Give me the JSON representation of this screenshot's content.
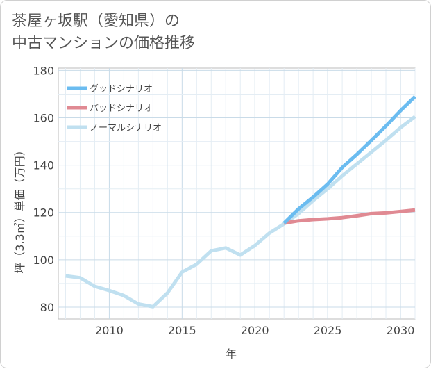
{
  "title_line1": "茶屋ヶ坂駅（愛知県）の",
  "title_line2": "中古マンションの価格推移",
  "chart_data": {
    "type": "line",
    "xlabel": "年",
    "ylabel": "坪（3.3㎡）単価（万円）",
    "xlim": [
      2006.5,
      2031
    ],
    "ylim": [
      75,
      181
    ],
    "xticks": [
      2010,
      2015,
      2020,
      2025,
      2030
    ],
    "yticks": [
      80,
      100,
      120,
      140,
      160,
      180
    ],
    "grid": true,
    "legend_position": "top-left",
    "series": [
      {
        "name": "グッドシナリオ",
        "color": "#6bbcf0",
        "x": [
          2022,
          2023,
          2024,
          2025,
          2026,
          2027,
          2028,
          2029,
          2030,
          2031
        ],
        "y": [
          115.5,
          121.5,
          126.5,
          132.0,
          139.0,
          144.5,
          150.5,
          156.5,
          163.0,
          169.0
        ]
      },
      {
        "name": "バッドシナリオ",
        "color": "#e08a93",
        "x": [
          2022,
          2023,
          2024,
          2025,
          2026,
          2027,
          2028,
          2029,
          2030,
          2031
        ],
        "y": [
          115.5,
          116.5,
          117.0,
          117.3,
          117.8,
          118.6,
          119.5,
          119.8,
          120.4,
          121.0
        ]
      },
      {
        "name": "ノーマルシナリオ",
        "color": "#c0e0f0",
        "x": [
          2007,
          2008,
          2009,
          2010,
          2011,
          2012,
          2013,
          2014,
          2015,
          2016,
          2017,
          2018,
          2019,
          2020,
          2021,
          2022,
          2023,
          2024,
          2025,
          2026,
          2027,
          2028,
          2029,
          2030,
          2031
        ],
        "y": [
          93.2,
          92.4,
          88.8,
          87.0,
          84.9,
          81.3,
          80.2,
          86.0,
          94.8,
          98.1,
          103.8,
          105.0,
          102.0,
          106.0,
          111.3,
          115.2,
          119.5,
          125.0,
          130.0,
          135.5,
          140.5,
          145.5,
          150.5,
          155.8,
          160.5
        ]
      }
    ]
  }
}
